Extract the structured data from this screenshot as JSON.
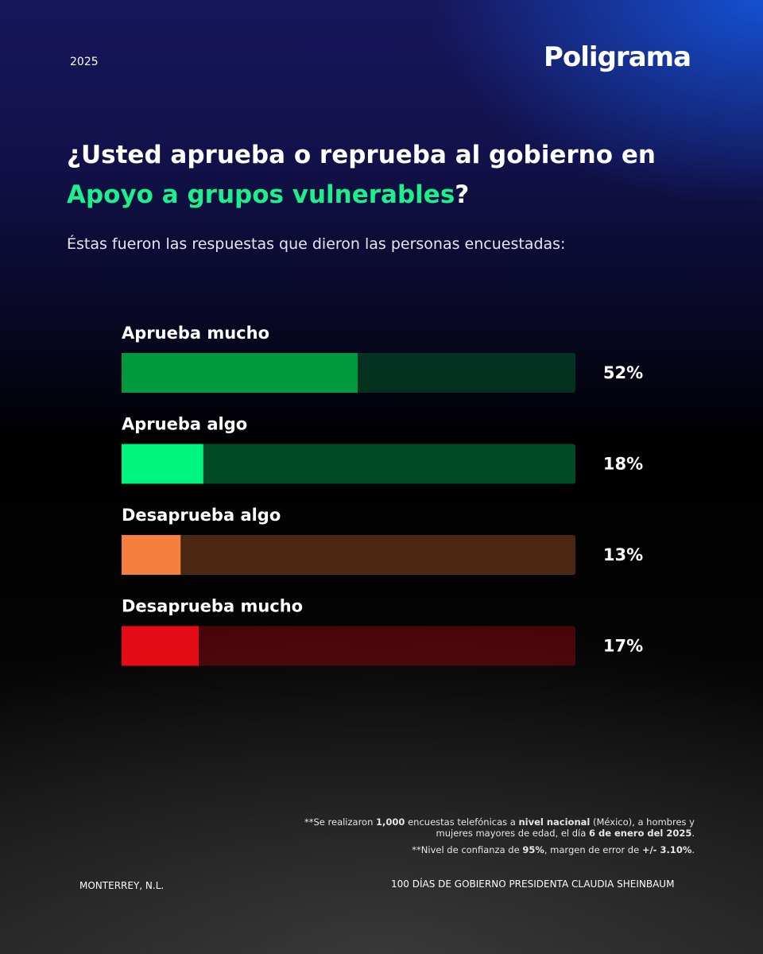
{
  "year": "2025",
  "brand": "Poligrama",
  "title_parts": [
    "¿Usted aprueba o reprueba al gobierno en ",
    "Apoyo a grupos vulnerables",
    "?"
  ],
  "subtitle": "Éstas fueron las respuestas que dieron las personas encuestadas:",
  "chart_data": {
    "type": "hbar",
    "categories": [
      "Aprueba mucho",
      "Aprueba algo",
      "Desaprueba algo",
      "Desaprueba mucho"
    ],
    "values": [
      52,
      18,
      13,
      17
    ],
    "value_labels": [
      "52%",
      "18%",
      "13%",
      "17%"
    ],
    "colors": [
      "#009a3e",
      "#00f57e",
      "#f57f3c",
      "#e30b16"
    ],
    "xlim": [
      0,
      100
    ]
  },
  "footnote_1": [
    "**Se realizaron ",
    "1,000",
    " encuestas telefónicas a ",
    "nivel nacional",
    " (México), a hombres y mujeres mayores de edad, el día ",
    "6 de enero del 2025",
    "."
  ],
  "footnote_2": [
    "**Nivel de confianza de ",
    "95%",
    ", margen de error de ",
    "+/- 3.10%",
    "."
  ],
  "location": "MONTERREY, N.L.",
  "campaign": "100 DÍAS DE GOBIERNO PRESIDENTA CLAUDIA SHEINBAUM"
}
